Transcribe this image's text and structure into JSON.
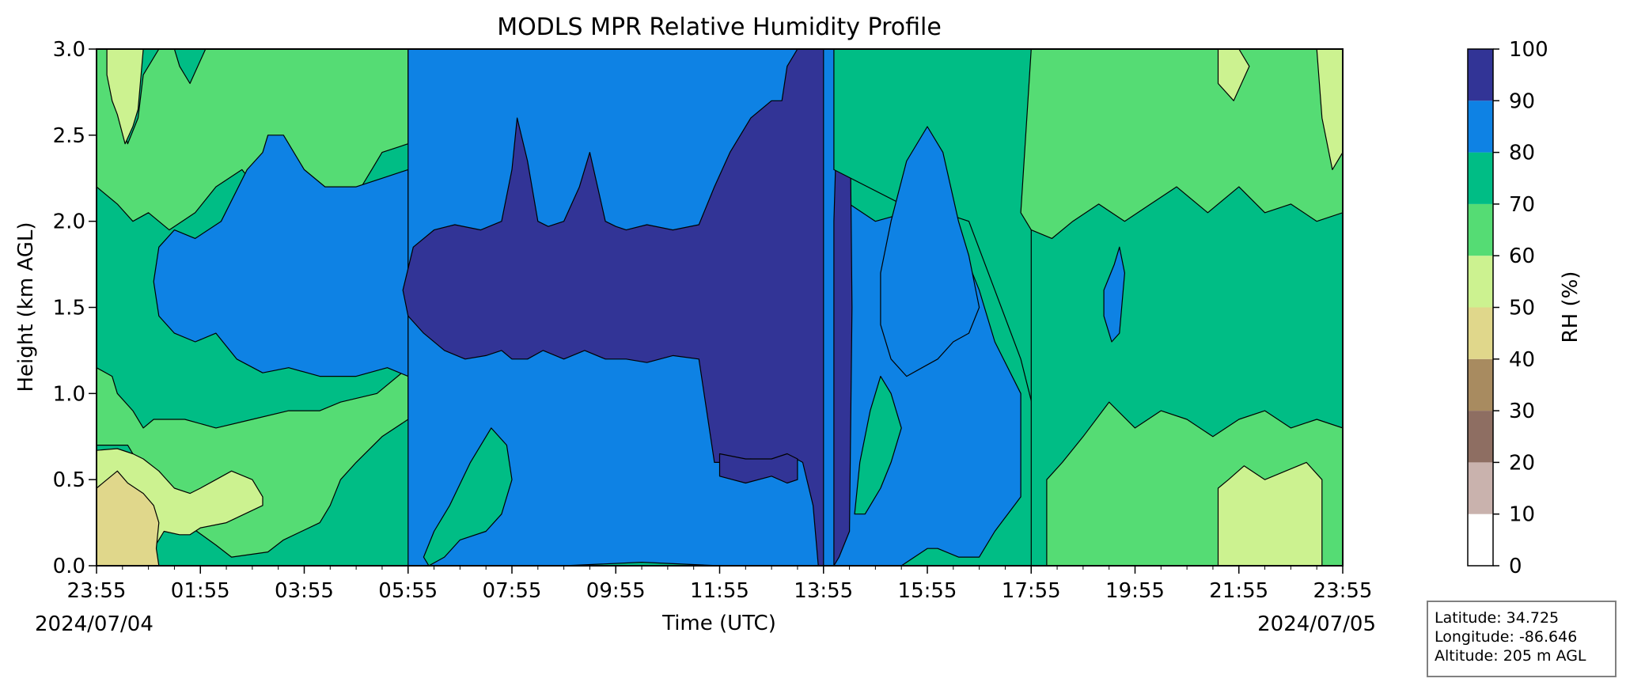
{
  "chart_data": {
    "type": "heatmap",
    "title": "MODLS MPR Relative Humidity Profile",
    "xlabel": "Time (UTC)",
    "ylabel": "Height (km AGL)",
    "colorbar_label": "RH (%)",
    "x_ticks": [
      "23:55",
      "01:55",
      "03:55",
      "05:55",
      "07:55",
      "09:55",
      "11:55",
      "13:55",
      "15:55",
      "17:55",
      "19:55",
      "21:55",
      "23:55"
    ],
    "x_range_hours": [
      0,
      24
    ],
    "date_start": "2024/07/04",
    "date_end": "2024/07/05",
    "y_ticks": [
      "0.0",
      "0.5",
      "1.0",
      "1.5",
      "2.0",
      "2.5",
      "3.0"
    ],
    "ylim": [
      0,
      3.0
    ],
    "colorbar_levels": [
      0,
      10,
      20,
      30,
      40,
      50,
      60,
      70,
      80,
      90,
      100
    ],
    "colorbar_tick_labels": [
      "0",
      "10",
      "20",
      "30",
      "40",
      "50",
      "60",
      "70",
      "80",
      "90",
      "100"
    ],
    "level_colors": [
      "#ffffff",
      "#c9b2ad",
      "#8e6e62",
      "#a88b60",
      "#e0d78b",
      "#ccf290",
      "#55dc74",
      "#00bd85",
      "#0e82e4",
      "#323496"
    ],
    "regions": [
      {
        "level": 6,
        "x": [
          0.0,
          0.0,
          0.6,
          0.7,
          1.1,
          1.4,
          1.7,
          2.3,
          2.6,
          3.3,
          3.6,
          4.3,
          4.5,
          4.7,
          5.0,
          5.5,
          6.0,
          6.0,
          5.4,
          4.7,
          4.3,
          3.7,
          3.0,
          2.3,
          1.7,
          1.1,
          0.9,
          0.7,
          0.4,
          0.3,
          0.0
        ],
        "y": [
          1.0,
          0.7,
          0.7,
          0.65,
          0.55,
          0.42,
          0.25,
          0.12,
          0.05,
          0.08,
          0.15,
          0.25,
          0.35,
          0.5,
          0.6,
          0.75,
          0.85,
          1.15,
          1.0,
          0.95,
          0.9,
          0.9,
          0.85,
          0.8,
          0.85,
          0.85,
          0.8,
          0.9,
          1.0,
          1.1,
          1.15
        ]
      },
      {
        "level": 5,
        "x": [
          0.0,
          0.0,
          0.3,
          0.5,
          0.7,
          0.9,
          1.1,
          1.3,
          1.6,
          1.8,
          2.0,
          2.5,
          3.2,
          3.2,
          3.0,
          2.6,
          2.3,
          2.0,
          1.8,
          1.5,
          1.2,
          0.9,
          0.7,
          0.4,
          0.0
        ],
        "y": [
          0.7,
          0.0,
          0.0,
          0.05,
          0.12,
          0.05,
          0.1,
          0.2,
          0.18,
          0.18,
          0.22,
          0.25,
          0.35,
          0.4,
          0.5,
          0.55,
          0.5,
          0.45,
          0.42,
          0.45,
          0.55,
          0.62,
          0.65,
          0.68,
          0.67
        ]
      },
      {
        "level": 4,
        "x": [
          0.0,
          0.0,
          1.2,
          1.15,
          1.2,
          1.1,
          0.9,
          0.6,
          0.4,
          0.2,
          0.0
        ],
        "y": [
          0.45,
          0.0,
          0.0,
          0.1,
          0.25,
          0.35,
          0.42,
          0.48,
          0.55,
          0.5,
          0.45
        ]
      },
      {
        "level": 6,
        "x": [
          0.0,
          0.2,
          0.3,
          0.5,
          0.6,
          0.8,
          0.9,
          1.2,
          1.5,
          1.6,
          1.8,
          2.1,
          2.5,
          2.7,
          3.0,
          3.3,
          3.6,
          4.0,
          4.6,
          5.0,
          5.5,
          6.0,
          6.0,
          5.5,
          5.3,
          5.0,
          4.6,
          4.2,
          3.8,
          3.2,
          2.8,
          2.3,
          1.9,
          1.4,
          1.0,
          0.7,
          0.4,
          0.0
        ],
        "y": [
          3.0,
          3.0,
          2.7,
          2.55,
          2.45,
          2.6,
          2.85,
          3.0,
          3.0,
          2.9,
          2.8,
          3.0,
          3.0,
          3.0,
          3.0,
          3.0,
          3.0,
          3.0,
          3.0,
          3.0,
          3.0,
          3.0,
          2.45,
          2.4,
          2.3,
          2.15,
          2.05,
          2.0,
          2.05,
          2.15,
          2.3,
          2.2,
          2.05,
          1.95,
          2.05,
          2.0,
          2.1,
          2.2
        ]
      },
      {
        "level": 5,
        "x": [
          0.2,
          0.2,
          0.3,
          0.4,
          0.55,
          0.7,
          0.8,
          0.9,
          0.8,
          0.6,
          0.45,
          0.3
        ],
        "y": [
          3.0,
          2.85,
          2.7,
          2.62,
          2.45,
          2.55,
          2.65,
          3.0,
          3.0,
          3.0,
          3.0,
          3.0
        ]
      },
      {
        "level": 8,
        "x": [
          1.1,
          1.2,
          1.5,
          1.9,
          2.4,
          2.9,
          3.2,
          3.3,
          3.6,
          4.0,
          4.4,
          5.0,
          5.5,
          6.0,
          6.0,
          5.6,
          5.0,
          4.3,
          3.7,
          3.2,
          2.7,
          2.3,
          1.9,
          1.5,
          1.2,
          1.1
        ],
        "y": [
          1.65,
          1.85,
          1.95,
          1.9,
          2.0,
          2.3,
          2.4,
          2.5,
          2.5,
          2.3,
          2.2,
          2.2,
          2.25,
          2.3,
          1.1,
          1.15,
          1.1,
          1.1,
          1.15,
          1.12,
          1.2,
          1.35,
          1.3,
          1.35,
          1.45,
          1.65
        ]
      },
      {
        "level": 8,
        "x": [
          6.0,
          6.0,
          7.5,
          9.0,
          10.5,
          12.0,
          13.5,
          14.2,
          14.2,
          15.5,
          16.0,
          16.2,
          16.6,
          17.0,
          17.3,
          17.8,
          17.8,
          17.3,
          17.0,
          16.6,
          16.2,
          15.6,
          15.0,
          14.5,
          14.2,
          14.2,
          13.5,
          12.0,
          10.5,
          9.0,
          7.5
        ],
        "y": [
          3.0,
          0.0,
          0.0,
          0.0,
          0.02,
          0.0,
          0.0,
          0.0,
          0.0,
          0.0,
          0.1,
          0.1,
          0.05,
          0.05,
          0.2,
          0.4,
          1.0,
          1.3,
          1.6,
          1.9,
          2.1,
          2.05,
          2.0,
          2.1,
          3.0,
          3.0,
          3.0,
          3.0,
          3.0,
          3.0,
          3.0
        ]
      },
      {
        "level": 7,
        "x": [
          6.4,
          6.7,
          7.0,
          7.5,
          7.8,
          8.0,
          7.9,
          7.6,
          7.2,
          6.8,
          6.5,
          6.3
        ],
        "y": [
          0.0,
          0.05,
          0.15,
          0.2,
          0.3,
          0.5,
          0.7,
          0.8,
          0.6,
          0.35,
          0.2,
          0.05
        ]
      },
      {
        "level": 9,
        "x": [
          5.9,
          6.1,
          6.5,
          6.9,
          7.4,
          7.8,
          8.0,
          8.1,
          8.3,
          8.5,
          8.7,
          9.0,
          9.3,
          9.5,
          9.8,
          10.0,
          10.2,
          10.6,
          11.1,
          11.6,
          11.9,
          12.2,
          12.6,
          13.0,
          13.2,
          13.3,
          13.5,
          13.6,
          13.8,
          14.0,
          14.0,
          13.9,
          13.8,
          13.6,
          13.3,
          13.0,
          12.6,
          12.2,
          11.9,
          11.6,
          11.1,
          10.6,
          10.2,
          9.8,
          9.4,
          9.0,
          8.6,
          8.3,
          8.0,
          7.8,
          7.5,
          7.1,
          6.7,
          6.3,
          6.0,
          5.9
        ],
        "y": [
          1.6,
          1.85,
          1.95,
          1.98,
          1.95,
          2.0,
          2.3,
          2.6,
          2.35,
          2.0,
          1.97,
          2.0,
          2.2,
          2.4,
          2.0,
          1.97,
          1.95,
          1.98,
          1.95,
          1.98,
          2.2,
          2.4,
          2.6,
          2.7,
          2.7,
          2.9,
          3.0,
          3.0,
          3.0,
          3.0,
          0.0,
          0.0,
          0.35,
          0.6,
          0.65,
          0.6,
          0.62,
          0.6,
          0.6,
          1.2,
          1.22,
          1.18,
          1.2,
          1.2,
          1.25,
          1.2,
          1.25,
          1.2,
          1.2,
          1.25,
          1.22,
          1.2,
          1.25,
          1.35,
          1.45,
          1.6
        ]
      },
      {
        "level": 9,
        "x": [
          12.0,
          12.5,
          13.0,
          13.3,
          13.5,
          13.5,
          13.3,
          13.0,
          12.5,
          12.0
        ],
        "y": [
          0.65,
          0.62,
          0.62,
          0.65,
          0.62,
          0.5,
          0.48,
          0.52,
          0.48,
          0.52
        ]
      },
      {
        "level": 9,
        "x": [
          14.2,
          14.3,
          14.5,
          14.55,
          14.5,
          14.3,
          14.2
        ],
        "y": [
          0.0,
          0.05,
          0.2,
          1.5,
          3.0,
          3.0,
          2.0
        ]
      },
      {
        "level": 7,
        "x": [
          14.2,
          14.2,
          15.5,
          16.3,
          16.8,
          17.3,
          17.8,
          18.3,
          18.3,
          17.8,
          17.3,
          16.8,
          16.3,
          15.9,
          15.5,
          15.1,
          14.8,
          14.6
        ],
        "y": [
          3.0,
          2.3,
          2.1,
          2.05,
          2.0,
          1.6,
          1.2,
          0.6,
          3.0,
          3.0,
          3.0,
          3.0,
          3.0,
          3.0,
          3.0,
          3.0,
          3.0,
          3.0
        ]
      },
      {
        "level": 8,
        "x": [
          15.1,
          15.3,
          15.6,
          16.0,
          16.3,
          16.6,
          16.8,
          17.0,
          16.8,
          16.5,
          16.2,
          15.9,
          15.6,
          15.3,
          15.1
        ],
        "y": [
          1.7,
          2.0,
          2.35,
          2.55,
          2.4,
          2.0,
          1.8,
          1.5,
          1.35,
          1.3,
          1.2,
          1.15,
          1.1,
          1.2,
          1.4
        ]
      },
      {
        "level": 7,
        "x": [
          14.6,
          14.8,
          15.1,
          15.3,
          15.5,
          15.3,
          15.1,
          14.9,
          14.7
        ],
        "y": [
          0.3,
          0.3,
          0.45,
          0.6,
          0.8,
          1.0,
          1.1,
          0.9,
          0.6
        ]
      },
      {
        "level": 7,
        "x": [
          18.0,
          18.3,
          19.0,
          20.0,
          21.0,
          22.0,
          23.0,
          24.0,
          24.0,
          23.0,
          22.0,
          21.0,
          20.0,
          19.0,
          18.0
        ],
        "y": [
          0.0,
          0.0,
          0.0,
          0.0,
          0.0,
          0.0,
          0.0,
          0.0,
          3.0,
          3.0,
          3.0,
          3.0,
          3.0,
          3.0,
          3.0
        ]
      },
      {
        "level": 6,
        "x": [
          17.8,
          18.0,
          18.4,
          18.8,
          19.3,
          19.8,
          20.3,
          20.8,
          21.4,
          22.0,
          22.5,
          23.0,
          23.5,
          24.0,
          24.0,
          23.5,
          23.0,
          22.5,
          22.0,
          21.4,
          20.8,
          20.3,
          19.8,
          19.3,
          18.8,
          18.4,
          18.0
        ],
        "y": [
          2.05,
          1.95,
          1.9,
          2.0,
          2.1,
          2.0,
          2.1,
          2.2,
          2.05,
          2.2,
          2.05,
          2.1,
          2.0,
          2.05,
          3.0,
          3.0,
          3.0,
          3.0,
          3.0,
          3.0,
          3.0,
          3.0,
          3.0,
          3.0,
          3.0,
          3.0,
          3.0
        ]
      },
      {
        "level": 5,
        "x": [
          23.5,
          23.6,
          23.8,
          24.0,
          24.0,
          23.5
        ],
        "y": [
          3.0,
          2.6,
          2.3,
          2.4,
          3.0,
          3.0
        ]
      },
      {
        "level": 5,
        "x": [
          21.6,
          22.0,
          22.2,
          21.9,
          21.6
        ],
        "y": [
          3.0,
          3.0,
          2.9,
          2.7,
          2.8
        ]
      },
      {
        "level": 6,
        "x": [
          18.3,
          18.3,
          19.0,
          20.0,
          21.0,
          22.0,
          23.0,
          24.0,
          24.0,
          23.5,
          23.0,
          22.5,
          22.0,
          21.5,
          21.0,
          20.5,
          20.0,
          19.5,
          19.0,
          18.6
        ],
        "y": [
          0.5,
          0.0,
          0.0,
          0.0,
          0.0,
          0.0,
          0.0,
          0.0,
          0.8,
          0.85,
          0.8,
          0.9,
          0.85,
          0.75,
          0.85,
          0.9,
          0.8,
          0.95,
          0.75,
          0.6
        ]
      },
      {
        "level": 5,
        "x": [
          21.6,
          21.6,
          23.6,
          23.6,
          23.3,
          22.9,
          22.5,
          22.1,
          21.8
        ],
        "y": [
          0.45,
          0.0,
          0.0,
          0.5,
          0.6,
          0.55,
          0.5,
          0.58,
          0.5
        ]
      },
      {
        "level": 8,
        "x": [
          19.4,
          19.6,
          19.7,
          19.8,
          19.7,
          19.55,
          19.4
        ],
        "y": [
          1.6,
          1.75,
          1.85,
          1.7,
          1.35,
          1.3,
          1.45
        ]
      }
    ]
  },
  "info_box": {
    "latitude": "Latitude: 34.725",
    "longitude": "Longitude: -86.646",
    "altitude": "Altitude: 205 m AGL"
  }
}
